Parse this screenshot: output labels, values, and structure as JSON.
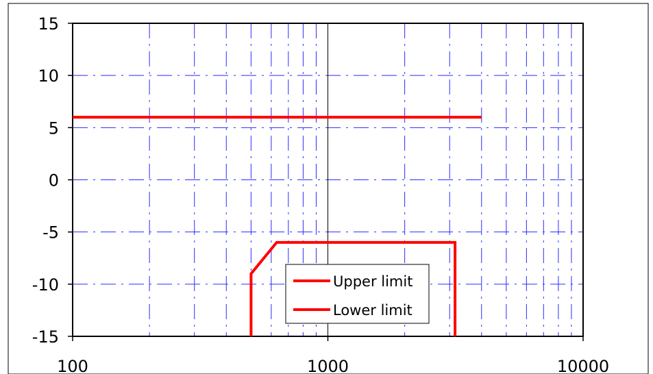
{
  "chart_data": {
    "type": "line",
    "title": "",
    "xlabel": "",
    "ylabel": "",
    "x_scale": "log",
    "xlim": [
      100,
      10000
    ],
    "ylim": [
      -15,
      15
    ],
    "x_ticks": [
      100,
      1000,
      10000
    ],
    "x_tick_labels": [
      "100",
      "1000",
      "10000"
    ],
    "y_ticks": [
      -15,
      -10,
      -5,
      0,
      5,
      10,
      15
    ],
    "y_tick_labels": [
      "-15",
      "-10",
      "-5",
      "0",
      "5",
      "10",
      "15"
    ],
    "grid": true,
    "legend_position": "lower-center",
    "series": [
      {
        "name": "Upper limit",
        "color": "#ff0000",
        "points": [
          [
            100,
            6
          ],
          [
            4000,
            6
          ]
        ]
      },
      {
        "name": "Lower limit",
        "color": "#ff0000",
        "points": [
          [
            500,
            -15
          ],
          [
            500,
            -9
          ],
          [
            630,
            -6
          ],
          [
            3150,
            -6
          ],
          [
            3150,
            -15
          ]
        ]
      }
    ]
  }
}
